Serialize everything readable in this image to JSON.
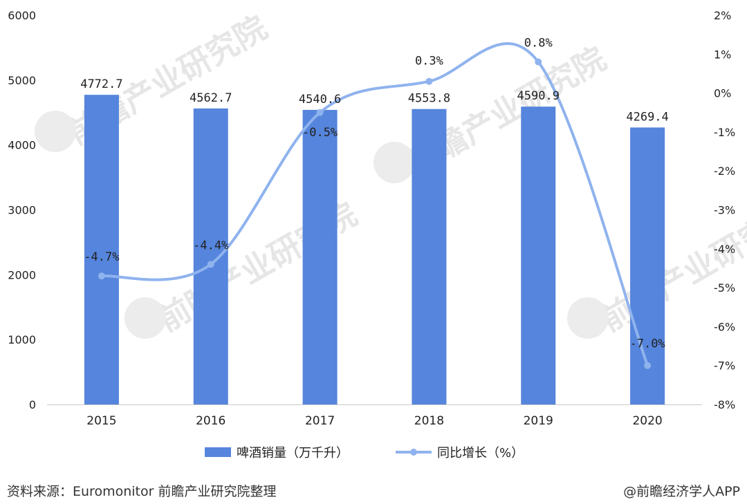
{
  "chart_data": {
    "type": "bar",
    "categories": [
      "2015",
      "2016",
      "2017",
      "2018",
      "2019",
      "2020"
    ],
    "series": [
      {
        "name": "啤酒销量（万千升）",
        "type": "bar",
        "axis": "left",
        "values": [
          4772.7,
          4562.7,
          4540.6,
          4553.8,
          4590.9,
          4269.4
        ],
        "labels": [
          "4772.7",
          "4562.7",
          "4540.6",
          "4553.8",
          "4590.9",
          "4269.4"
        ],
        "color": "#5585dc"
      },
      {
        "name": "同比增长（%）",
        "type": "line",
        "axis": "right",
        "values": [
          -4.7,
          -4.4,
          -0.5,
          0.3,
          0.8,
          -7.0
        ],
        "labels": [
          "-4.7%",
          "-4.4%",
          "-0.5%",
          "0.3%",
          "0.8%",
          "-7.0%"
        ],
        "color": "#8fb3ee"
      }
    ],
    "ylim_left": [
      0,
      6000
    ],
    "yticks_left": [
      "0",
      "1000",
      "2000",
      "3000",
      "4000",
      "5000",
      "6000"
    ],
    "ylim_right": [
      -8,
      2
    ],
    "yticks_right": [
      "-8%",
      "-7%",
      "-6%",
      "-5%",
      "-4%",
      "-3%",
      "-2%",
      "-1%",
      "0%",
      "1%",
      "2%"
    ],
    "grid": false,
    "legend_position": "bottom"
  },
  "footer": {
    "source": "资料来源：Euromonitor 前瞻产业研究院整理",
    "credit": "@前瞻经济学人APP"
  },
  "watermark": {
    "text": "前瞻产业研究院"
  }
}
